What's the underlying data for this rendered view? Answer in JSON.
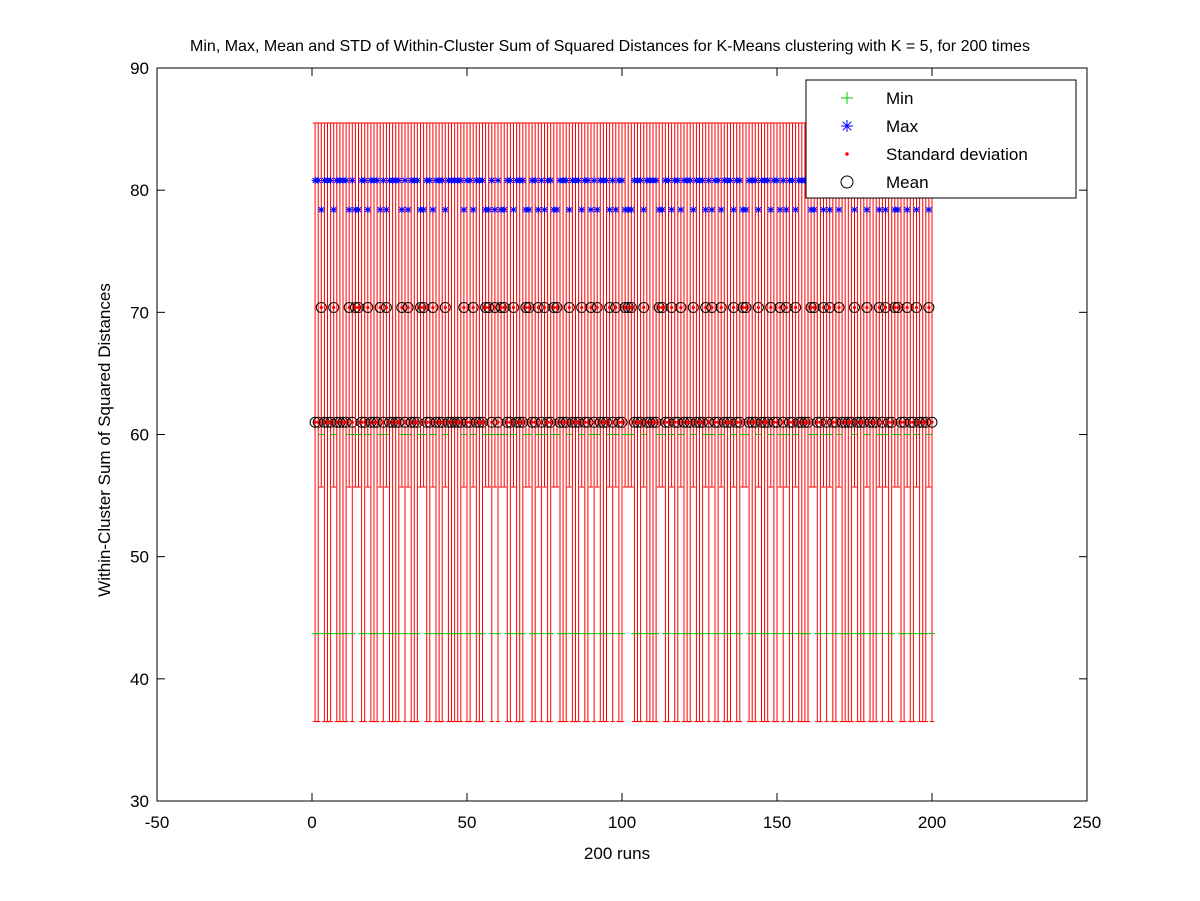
{
  "chart_data": {
    "type": "scatter",
    "title": "Min, Max, Mean and STD of Within-Cluster Sum of Squared Distances for K-Means clustering with K = 5, for 200 times",
    "xlabel": "200 runs",
    "ylabel": "Within-Cluster Sum of Squared Distances",
    "xlim": [
      -50,
      250
    ],
    "ylim": [
      30,
      90
    ],
    "xticks": [
      "-50",
      "0",
      "50",
      "100",
      "150",
      "200",
      "250"
    ],
    "yticks": [
      "30",
      "40",
      "50",
      "60",
      "70",
      "80",
      "90"
    ],
    "grid": false,
    "legend_position": "top-right",
    "colors": {
      "min": "#00cc00",
      "max": "#0000ff",
      "std": "#ff0000",
      "mean": "#000000",
      "errorbar": "#ff0000"
    },
    "pattern_note_omitted": true,
    "series": [
      {
        "name": "Min",
        "marker": "plus",
        "x_range": [
          1,
          200
        ],
        "values_by_mean_level": {
          "high": 60.0,
          "low": 43.7
        }
      },
      {
        "name": "Max",
        "marker": "asterisk",
        "x_range": [
          1,
          200
        ],
        "values_by_mean_level": {
          "high": 80.8,
          "low": 78.4
        }
      },
      {
        "name": "Standard deviation",
        "marker": "dot",
        "x_range": [
          1,
          200
        ],
        "values": "equals mean level",
        "error_bar": {
          "upper": 85.5,
          "lower_high": 55.7,
          "lower_low": 36.5
        }
      },
      {
        "name": "Mean",
        "marker": "circle",
        "x_range": [
          1,
          200
        ],
        "levels": [
          61.0,
          70.4
        ]
      }
    ],
    "mean_sequence": "LLHLLLHLLLLHLHHLLHLLLHLHLLLLHLHLLLHHLLHLLLHLLLLLHLLHLLLHHLHLHHLLHLLLHHLLHLHLLHHLLLHLLLHLLHLHLLLHLHLLHHHLLLHLLLLHHLLHLLHLLLHLLLHLHLLHLLLHLLHHLLLHLLLHLLHLHLLHLLLLHHLLHLHLLHLLLLHLLLHLLLHLHLLHHLLH",
    "legend": [
      "Min",
      "Max",
      "Standard deviation",
      "Mean"
    ]
  }
}
